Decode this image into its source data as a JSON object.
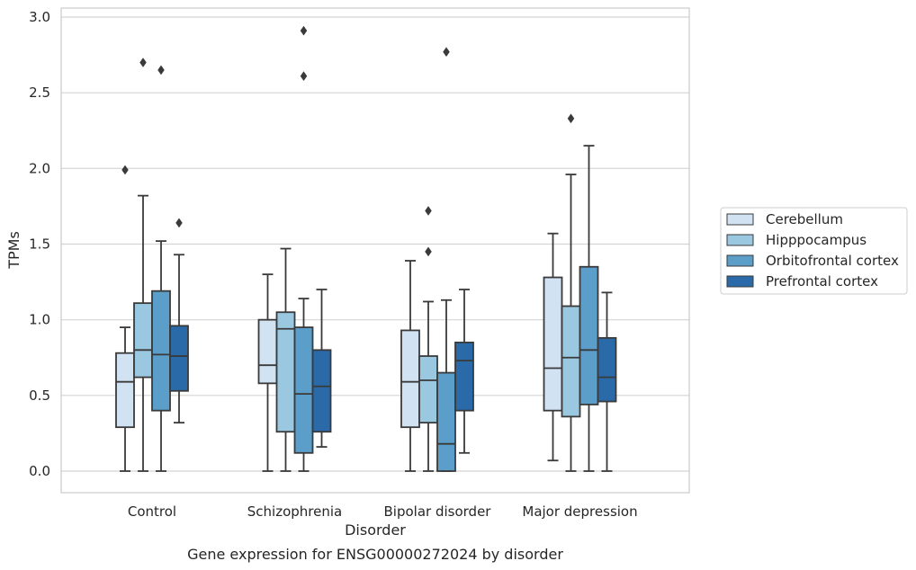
{
  "chart_data": {
    "type": "box",
    "title": "Gene expression for ENSG00000272024 by disorder",
    "xlabel": "Disorder",
    "ylabel": "TPMs",
    "ylim": [
      -0.14,
      3.06
    ],
    "yticks": [
      "0.0",
      "0.5",
      "1.0",
      "1.5",
      "2.0",
      "2.5",
      "3.0"
    ],
    "grid": "horizontal",
    "legend_position": "right",
    "categories": [
      "Control",
      "Schizophrenia",
      "Bipolar disorder",
      "Major depression"
    ],
    "series": [
      {
        "name": "Cerebellum",
        "color": "#d1e2f2",
        "boxes": [
          {
            "whisker_low": 0.0,
            "q1": 0.29,
            "median": 0.59,
            "q3": 0.78,
            "whisker_high": 0.95,
            "outliers": [
              1.99
            ]
          },
          {
            "whisker_low": 0.0,
            "q1": 0.58,
            "median": 0.7,
            "q3": 1.0,
            "whisker_high": 1.3,
            "outliers": []
          },
          {
            "whisker_low": 0.0,
            "q1": 0.29,
            "median": 0.59,
            "q3": 0.93,
            "whisker_high": 1.39,
            "outliers": []
          },
          {
            "whisker_low": 0.07,
            "q1": 0.4,
            "median": 0.68,
            "q3": 1.28,
            "whisker_high": 1.57,
            "outliers": []
          }
        ]
      },
      {
        "name": "Hipppocampus",
        "color": "#9ac8e0",
        "boxes": [
          {
            "whisker_low": 0.0,
            "q1": 0.62,
            "median": 0.8,
            "q3": 1.11,
            "whisker_high": 1.82,
            "outliers": [
              2.7
            ]
          },
          {
            "whisker_low": 0.0,
            "q1": 0.26,
            "median": 0.94,
            "q3": 1.05,
            "whisker_high": 1.47,
            "outliers": []
          },
          {
            "whisker_low": 0.0,
            "q1": 0.32,
            "median": 0.6,
            "q3": 0.76,
            "whisker_high": 1.12,
            "outliers": [
              1.72,
              1.45
            ]
          },
          {
            "whisker_low": 0.0,
            "q1": 0.36,
            "median": 0.75,
            "q3": 1.09,
            "whisker_high": 1.96,
            "outliers": [
              2.33
            ]
          }
        ]
      },
      {
        "name": "Orbitofrontal cortex",
        "color": "#5a9ec9",
        "boxes": [
          {
            "whisker_low": 0.0,
            "q1": 0.4,
            "median": 0.77,
            "q3": 1.19,
            "whisker_high": 1.52,
            "outliers": [
              2.65
            ]
          },
          {
            "whisker_low": 0.0,
            "q1": 0.12,
            "median": 0.51,
            "q3": 0.95,
            "whisker_high": 1.14,
            "outliers": [
              2.91,
              2.61
            ]
          },
          {
            "whisker_low": 0.0,
            "q1": 0.0,
            "median": 0.18,
            "q3": 0.65,
            "whisker_high": 1.13,
            "outliers": [
              2.77
            ]
          },
          {
            "whisker_low": 0.0,
            "q1": 0.44,
            "median": 0.8,
            "q3": 1.35,
            "whisker_high": 2.15,
            "outliers": []
          }
        ]
      },
      {
        "name": "Prefrontal cortex",
        "color": "#2a6aa9",
        "boxes": [
          {
            "whisker_low": 0.32,
            "q1": 0.53,
            "median": 0.76,
            "q3": 0.96,
            "whisker_high": 1.43,
            "outliers": [
              1.64
            ]
          },
          {
            "whisker_low": 0.16,
            "q1": 0.26,
            "median": 0.56,
            "q3": 0.8,
            "whisker_high": 1.2,
            "outliers": []
          },
          {
            "whisker_low": 0.12,
            "q1": 0.4,
            "median": 0.73,
            "q3": 0.85,
            "whisker_high": 1.2,
            "outliers": []
          },
          {
            "whisker_low": 0.0,
            "q1": 0.46,
            "median": 0.62,
            "q3": 0.88,
            "whisker_high": 1.18,
            "outliers": []
          }
        ]
      }
    ]
  }
}
